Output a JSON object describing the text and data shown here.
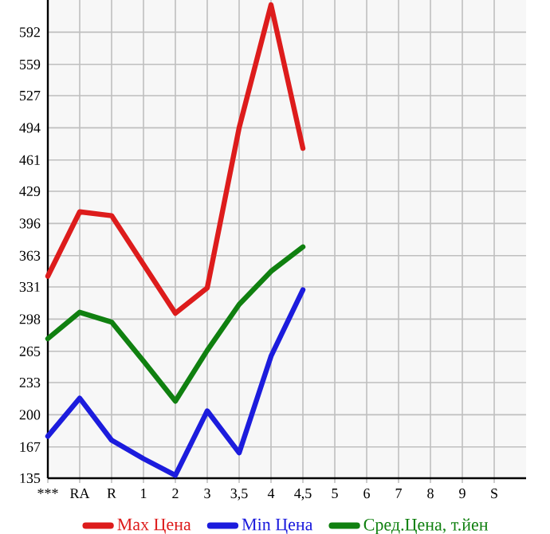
{
  "chart_data": {
    "type": "line",
    "categories": [
      "***",
      "RA",
      "R",
      "1",
      "2",
      "3",
      "3,5",
      "4",
      "4,5",
      "5",
      "6",
      "7",
      "8",
      "9",
      "S"
    ],
    "series": [
      {
        "name": "Max Цена",
        "color": "#dd1c1c",
        "values": [
          342,
          408,
          404,
          354,
          304,
          330,
          494,
          620,
          473,
          null,
          null,
          null,
          null,
          null,
          null
        ]
      },
      {
        "name": "Min Цена",
        "color": "#1c1cdd",
        "values": [
          178,
          217,
          174,
          155,
          138,
          204,
          161,
          260,
          328,
          null,
          null,
          null,
          null,
          null,
          null
        ]
      },
      {
        "name": "Сред.Цена, т.йен",
        "color": "#108010",
        "values": [
          278,
          305,
          295,
          255,
          214,
          266,
          313,
          347,
          372,
          null,
          null,
          null,
          null,
          null,
          null
        ]
      }
    ],
    "ylim": [
      135,
      625
    ],
    "yticks": [
      135,
      167,
      200,
      233,
      265,
      298,
      331,
      363,
      396,
      429,
      461,
      494,
      527,
      559,
      592
    ],
    "grid": true,
    "legend": "bottom",
    "marker": "none",
    "line_style": "solid"
  }
}
